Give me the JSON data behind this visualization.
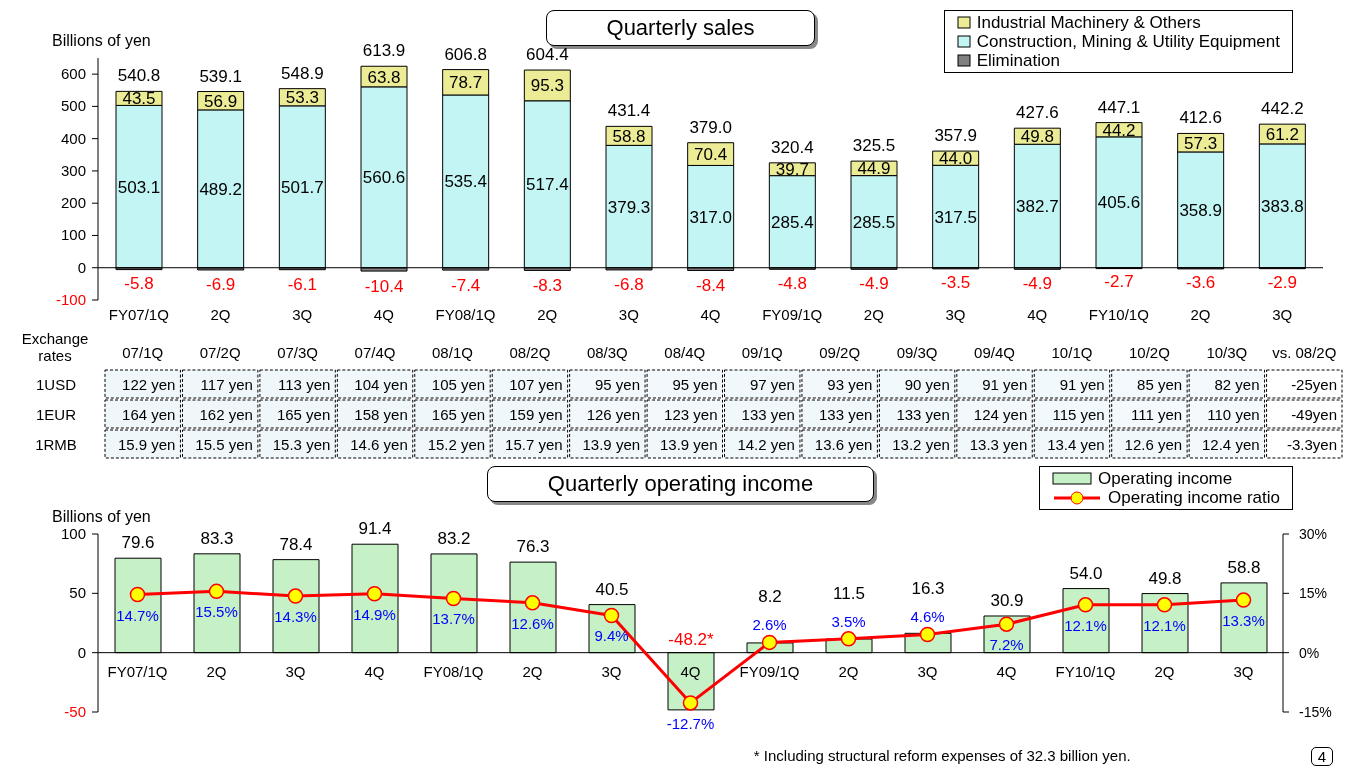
{
  "chart_data": [
    {
      "type": "bar",
      "title": "Quarterly sales",
      "ylabel": "Billions of yen",
      "stacked": true,
      "legend": "top right",
      "ylim": [
        -100,
        650
      ],
      "yticks": [
        -100,
        0,
        100,
        200,
        300,
        400,
        500,
        600
      ],
      "categories": [
        "FY07/1Q",
        "2Q",
        "3Q",
        "4Q",
        "FY08/1Q",
        "2Q",
        "3Q",
        "4Q",
        "FY09/1Q",
        "2Q",
        "3Q",
        "4Q",
        "FY10/1Q",
        "2Q",
        "3Q"
      ],
      "series": [
        {
          "name": "Elimination",
          "color": "#808080",
          "values": [
            -5.8,
            -6.9,
            -6.1,
            -10.4,
            -7.4,
            -8.3,
            -6.8,
            -8.4,
            -4.8,
            -4.9,
            -3.5,
            -4.9,
            -2.7,
            -3.6,
            -2.9
          ]
        },
        {
          "name": "Construction, Mining & Utility Equipment",
          "color": "#c4f5f5",
          "values": [
            503.1,
            489.2,
            501.7,
            560.6,
            535.4,
            517.4,
            379.3,
            317.0,
            285.4,
            285.5,
            317.5,
            382.7,
            405.6,
            358.9,
            383.8
          ],
          "value_labels": [
            "503.1",
            "489.2",
            "501.7",
            "560.6",
            "535.4",
            "517.4",
            "379.3",
            "317.0",
            "285.4",
            "285.5",
            "317.5",
            "382.7",
            "405.6",
            "358.9",
            "383.8"
          ]
        },
        {
          "name": "Industrial Machinery & Others",
          "color": "#ecec96",
          "values": [
            43.5,
            56.9,
            53.3,
            63.8,
            78.7,
            95.3,
            58.8,
            70.4,
            39.7,
            44.9,
            44.0,
            49.8,
            44.2,
            57.3,
            61.2
          ],
          "value_labels": [
            "43.5",
            "56.9",
            "53.3",
            "63.8",
            "78.7",
            "95.3",
            "58.8",
            "70.4",
            "39.7",
            "44.9",
            "44.0",
            "49.8",
            "44.2",
            "57.3",
            "61.2"
          ]
        }
      ],
      "data_labels": true,
      "totals": [
        "540.8",
        "539.1",
        "548.9",
        "613.9",
        "606.8",
        "604.4",
        "431.4",
        "379.0",
        "320.4",
        "325.5",
        "357.9",
        "427.6",
        "447.1",
        "412.6",
        "442.2"
      ]
    },
    {
      "type": "heatmap",
      "ylabel": "Exchange rates",
      "categories": [
        "07/1Q",
        "07/2Q",
        "07/3Q",
        "07/4Q",
        "08/1Q",
        "08/2Q",
        "08/3Q",
        "08/4Q",
        "09/1Q",
        "09/2Q",
        "09/3Q",
        "09/4Q",
        "10/1Q",
        "10/2Q",
        "10/3Q",
        "vs. 08/2Q"
      ],
      "y_categories": [
        "1USD",
        "1EUR",
        "1RMB"
      ],
      "cells": [
        [
          122,
          117,
          113,
          104,
          105,
          107,
          95,
          95,
          97,
          93,
          90,
          91,
          91,
          85,
          82,
          -25
        ],
        [
          164,
          162,
          165,
          158,
          165,
          159,
          126,
          123,
          133,
          133,
          133,
          124,
          115,
          111,
          110,
          -49
        ],
        [
          15.9,
          15.5,
          15.3,
          14.6,
          15.2,
          15.7,
          13.9,
          13.9,
          14.2,
          13.6,
          13.2,
          13.3,
          13.4,
          12.6,
          12.4,
          -3.3
        ]
      ],
      "cell_labels": [
        [
          "122 yen",
          "117 yen",
          "113 yen",
          "104 yen",
          "105 yen",
          "107 yen",
          "95 yen",
          "95 yen",
          "97 yen",
          "93 yen",
          "90 yen",
          "91 yen",
          "91 yen",
          "85 yen",
          "82 yen",
          "-25yen"
        ],
        [
          "164 yen",
          "162 yen",
          "165 yen",
          "158 yen",
          "165 yen",
          "159 yen",
          "126 yen",
          "123 yen",
          "133 yen",
          "133 yen",
          "133 yen",
          "124 yen",
          "115 yen",
          "111 yen",
          "110 yen",
          "-49yen"
        ],
        [
          "15.9 yen",
          "15.5 yen",
          "15.3 yen",
          "14.6 yen",
          "15.2 yen",
          "15.7 yen",
          "13.9 yen",
          "13.9 yen",
          "14.2 yen",
          "13.6 yen",
          "13.2 yen",
          "13.3 yen",
          "13.4 yen",
          "12.6 yen",
          "12.4 yen",
          "-3.3yen"
        ]
      ]
    },
    {
      "type": "bar",
      "title": "Quarterly operating income",
      "ylabel": "Billions of yen",
      "legend": "top right",
      "marker": "circle",
      "ylim": [
        -50,
        100
      ],
      "yticks": [
        -50,
        0,
        50,
        100
      ],
      "y2lim": [
        -15,
        30
      ],
      "y2ticks": [
        {
          "value": -15,
          "label": "-15%"
        },
        {
          "value": 0,
          "label": "0%"
        },
        {
          "value": 15,
          "label": "15%"
        },
        {
          "value": 30,
          "label": "30%"
        }
      ],
      "categories": [
        "FY07/1Q",
        "2Q",
        "3Q",
        "4Q",
        "FY08/1Q",
        "2Q",
        "3Q",
        "4Q",
        "FY09/1Q",
        "2Q",
        "3Q",
        "4Q",
        "FY10/1Q",
        "2Q",
        "3Q"
      ],
      "series": [
        {
          "name": "Operating income",
          "type": "bar",
          "color": "#c6f0c6",
          "values": [
            79.6,
            83.3,
            78.4,
            91.4,
            83.2,
            76.3,
            40.5,
            -48.2,
            8.2,
            11.5,
            16.3,
            30.9,
            54.0,
            49.8,
            58.8
          ],
          "value_labels": [
            "79.6",
            "83.3",
            "78.4",
            "91.4",
            "83.2",
            "76.3",
            "40.5",
            "-48.2*",
            "8.2",
            "11.5",
            "16.3",
            "30.9",
            "54.0",
            "49.8",
            "58.8"
          ]
        },
        {
          "name": "Operating income ratio",
          "type": "line",
          "axis": "y2",
          "color": "#ff0000",
          "values": [
            14.7,
            15.5,
            14.3,
            14.9,
            13.7,
            12.6,
            9.4,
            -12.7,
            2.6,
            3.5,
            4.6,
            7.2,
            12.1,
            12.1,
            13.3
          ],
          "value_labels": [
            "14.7%",
            "15.5%",
            "14.3%",
            "14.9%",
            "13.7%",
            "12.6%",
            "9.4%",
            "-12.7%",
            "2.6%",
            "3.5%",
            "4.6%",
            "7.2%",
            "12.1%",
            "12.1%",
            "13.3%"
          ]
        }
      ],
      "annotations": [
        "* Including structural reform expenses of 32.3 billion yen.",
        "4"
      ]
    }
  ]
}
